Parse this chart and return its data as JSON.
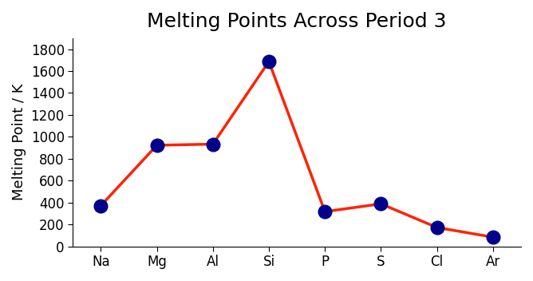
{
  "title": "Melting Points Across Period 3",
  "xlabel": "",
  "ylabel": "Melting Point / K",
  "elements": [
    "Na",
    "Mg",
    "Al",
    "Si",
    "P",
    "S",
    "Cl",
    "Ar"
  ],
  "melting_points": [
    371,
    923,
    933,
    1687,
    317,
    388,
    172,
    84
  ],
  "ylim": [
    0,
    1900
  ],
  "yticks": [
    0,
    200,
    400,
    600,
    800,
    1000,
    1200,
    1400,
    1600,
    1800
  ],
  "line_color": "#FF2200",
  "marker_color": "#00008B",
  "marker_size": 12,
  "line_width": 2.5,
  "title_fontsize": 18,
  "label_fontsize": 13,
  "tick_fontsize": 12,
  "background_color": "#FFFFFF",
  "border_color": "#000000"
}
